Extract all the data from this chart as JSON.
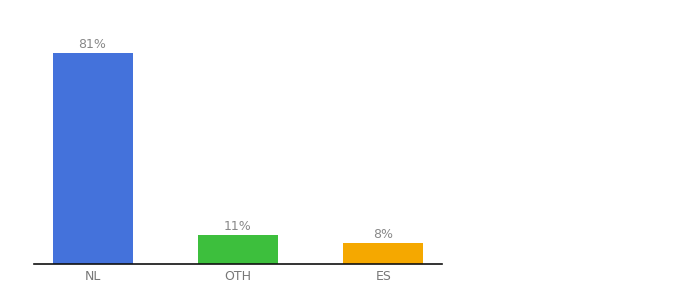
{
  "categories": [
    "NL",
    "OTH",
    "ES"
  ],
  "values": [
    81,
    11,
    8
  ],
  "bar_colors": [
    "#4472db",
    "#3dbf3d",
    "#f5a800"
  ],
  "label_texts": [
    "81%",
    "11%",
    "8%"
  ],
  "background_color": "#ffffff",
  "ylim": [
    0,
    92
  ],
  "bar_width": 0.55,
  "label_fontsize": 9,
  "tick_fontsize": 9,
  "label_color": "#888888",
  "tick_color": "#777777",
  "spine_color": "#111111"
}
